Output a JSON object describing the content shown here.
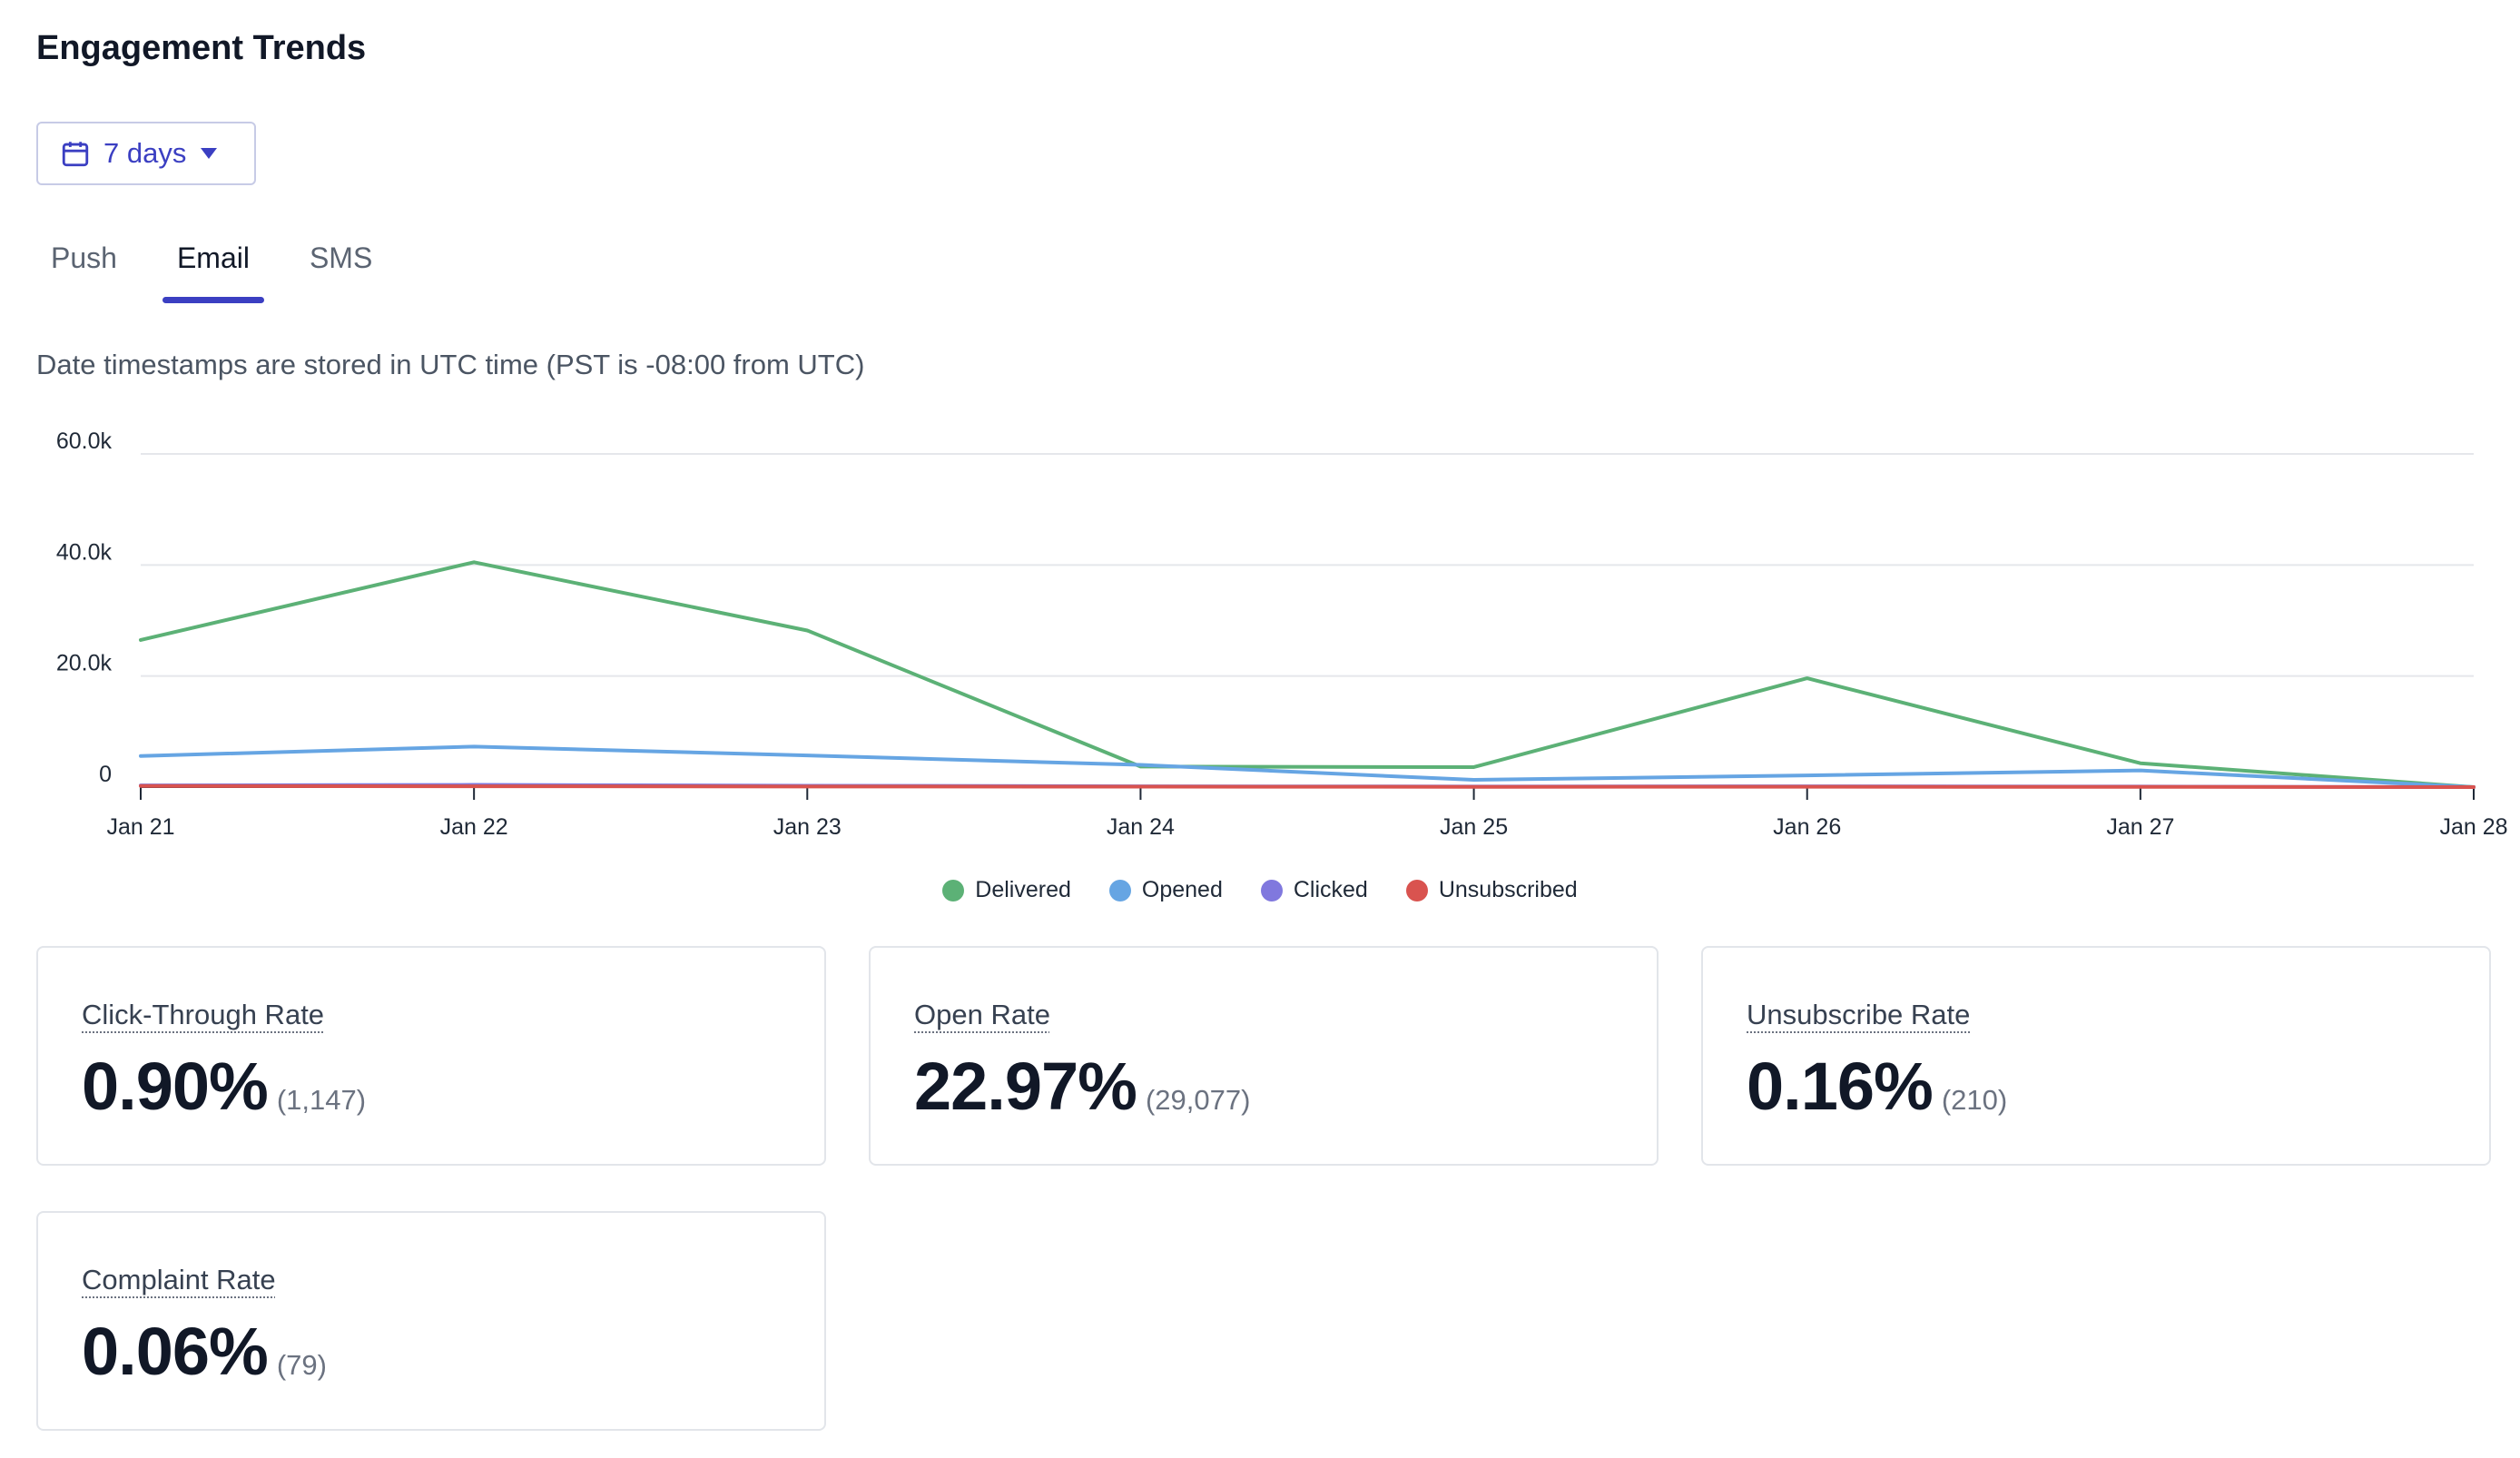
{
  "page": {
    "title": "Engagement Trends"
  },
  "range_button": {
    "label": "7 days"
  },
  "tabs": [
    {
      "label": "Push",
      "active": false
    },
    {
      "label": "Email",
      "active": true
    },
    {
      "label": "SMS",
      "active": false
    }
  ],
  "note": "Date timestamps are stored in UTC time (PST is -08:00 from UTC)",
  "chart_data": {
    "type": "line",
    "x": [
      "Jan 21",
      "Jan 22",
      "Jan 23",
      "Jan 24",
      "Jan 25",
      "Jan 26",
      "Jan 27",
      "Jan 28"
    ],
    "y_ticks": [
      0,
      20000,
      40000,
      60000
    ],
    "y_tick_labels": [
      "0",
      "20.0k",
      "40.0k",
      "60.0k"
    ],
    "ylim": [
      0,
      60000
    ],
    "grid": true,
    "legend_position": "bottom",
    "series": [
      {
        "name": "Delivered",
        "color": "#5cb176",
        "values": [
          26500,
          40500,
          28200,
          3700,
          3600,
          19600,
          4300,
          0
        ]
      },
      {
        "name": "Opened",
        "color": "#66a5e3",
        "values": [
          5600,
          7300,
          5700,
          4000,
          1300,
          2100,
          3000,
          0
        ]
      },
      {
        "name": "Clicked",
        "color": "#8078de",
        "values": [
          300,
          400,
          250,
          150,
          100,
          150,
          100,
          0
        ]
      },
      {
        "name": "Unsubscribed",
        "color": "#d9534f",
        "values": [
          200,
          150,
          100,
          80,
          50,
          60,
          40,
          0
        ]
      }
    ]
  },
  "metrics": [
    {
      "label": "Click-Through Rate",
      "value": "0.90%",
      "count": "(1,147)"
    },
    {
      "label": "Open Rate",
      "value": "22.97%",
      "count": "(29,077)"
    },
    {
      "label": "Unsubscribe Rate",
      "value": "0.16%",
      "count": "(210)"
    },
    {
      "label": "Complaint Rate",
      "value": "0.06%",
      "count": "(79)"
    }
  ]
}
